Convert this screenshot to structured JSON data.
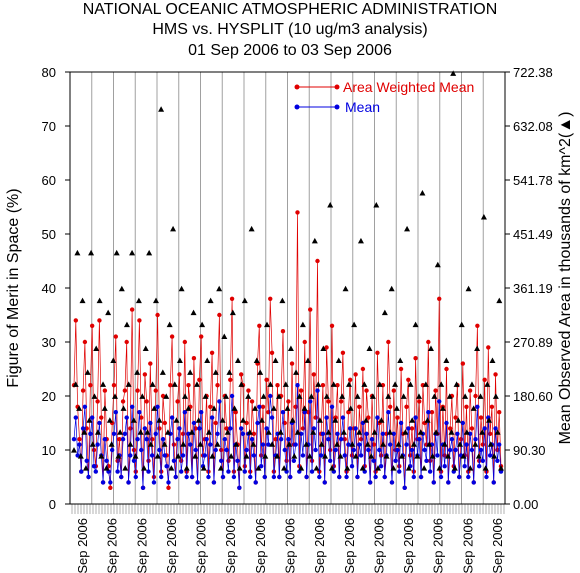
{
  "chart_data": {
    "type": "scatter",
    "title": "NATIONAL OCEANIC ATMOSPHERIC ADMINISTRATION",
    "subtitle": "HMS vs. HYSPLIT (10 ug/m3 analysis)",
    "date_range": "01 Sep 2006 to 03 Sep 2006",
    "ylabel_left": "Figure of Merit in Space (%)",
    "ylabel_right": "Mean Observed Area in thousands of km^2",
    "ylabel_right_marker": "(▲)",
    "ylim_left": [
      0,
      80
    ],
    "yticks_left": [
      "0",
      "10",
      "20",
      "30",
      "40",
      "50",
      "60",
      "70",
      "80"
    ],
    "ylim_right": [
      0,
      722.38
    ],
    "yticks_right": [
      "0.00",
      "90.30",
      "180.60",
      "270.89",
      "361.19",
      "451.49",
      "541.78",
      "632.08",
      "722.38"
    ],
    "x_tick_label": "Sep 2006",
    "x_tick_count": 15,
    "legend_position": "top-right",
    "series": [
      {
        "name": "Area Weighted Mean",
        "color": "#e00000",
        "values": [
          22,
          34,
          18,
          12,
          6,
          21,
          30,
          14,
          5,
          22,
          33,
          10,
          7,
          19,
          34,
          16,
          4,
          21,
          12,
          7,
          3,
          15,
          22,
          31,
          8,
          12,
          5,
          19,
          21,
          30,
          4,
          14,
          36,
          10,
          6,
          21,
          34,
          16,
          3,
          24,
          19,
          8,
          26,
          12,
          5,
          21,
          35,
          14,
          6,
          20,
          15,
          9,
          3,
          22,
          31,
          11,
          5,
          19,
          24,
          8,
          13,
          30,
          6,
          22,
          18,
          5,
          27,
          14,
          4,
          23,
          31,
          9,
          12,
          20,
          6,
          18,
          28,
          4,
          15,
          22,
          35,
          10,
          5,
          20,
          14,
          8,
          23,
          38,
          6,
          17,
          11,
          3,
          24,
          22,
          7,
          15,
          21,
          6,
          19,
          13,
          4,
          26,
          33,
          9,
          18,
          5,
          23,
          17,
          38,
          28,
          6,
          12,
          22,
          5,
          20,
          32,
          15,
          8,
          19,
          5,
          26,
          11,
          18,
          54,
          7,
          21,
          14,
          30,
          5,
          17,
          36,
          8,
          24,
          16,
          45,
          6,
          13,
          22,
          4,
          29,
          19,
          10,
          33,
          7,
          16,
          22,
          5,
          19,
          28,
          12,
          6,
          17,
          23,
          9,
          14,
          24,
          5,
          18,
          12,
          25,
          7,
          21,
          16,
          4,
          20,
          11,
          6,
          28,
          15,
          9,
          22,
          5,
          13,
          30,
          18,
          4,
          21,
          10,
          16,
          7,
          25,
          13,
          3,
          18,
          23,
          9,
          14,
          6,
          27,
          12,
          19,
          5,
          22,
          15,
          11,
          30,
          8,
          17,
          4,
          21,
          13,
          38,
          6,
          18,
          9,
          25,
          4,
          14,
          20,
          7,
          16,
          22,
          5,
          12,
          26,
          9,
          18,
          6,
          21,
          14,
          4,
          20,
          33,
          8,
          16,
          11,
          23,
          6,
          29,
          13,
          18,
          4,
          24,
          10,
          17,
          7
        ]
      },
      {
        "name": "Mean",
        "color": "#0000e0",
        "values": [
          12,
          16,
          9,
          11,
          6,
          14,
          18,
          8,
          5,
          13,
          16,
          7,
          6,
          11,
          15,
          9,
          4,
          12,
          8,
          6,
          4,
          10,
          13,
          17,
          6,
          9,
          5,
          12,
          13,
          16,
          4,
          9,
          18,
          8,
          5,
          12,
          17,
          10,
          3,
          14,
          12,
          6,
          15,
          9,
          4,
          13,
          18,
          10,
          5,
          12,
          9,
          7,
          4,
          13,
          16,
          8,
          5,
          12,
          14,
          6,
          9,
          17,
          5,
          13,
          11,
          5,
          15,
          10,
          4,
          14,
          17,
          7,
          9,
          12,
          5,
          11,
          16,
          4,
          10,
          13,
          19,
          8,
          5,
          12,
          10,
          6,
          14,
          20,
          5,
          11,
          8,
          3,
          14,
          13,
          6,
          10,
          13,
          5,
          12,
          9,
          4,
          15,
          18,
          7,
          11,
          5,
          14,
          11,
          20,
          16,
          5,
          9,
          13,
          5,
          12,
          17,
          10,
          6,
          12,
          5,
          15,
          8,
          11,
          22,
          6,
          13,
          9,
          17,
          5,
          11,
          19,
          6,
          14,
          10,
          21,
          5,
          9,
          13,
          4,
          16,
          12,
          8,
          18,
          6,
          10,
          13,
          5,
          12,
          16,
          9,
          5,
          11,
          14,
          7,
          10,
          14,
          5,
          11,
          9,
          15,
          6,
          13,
          10,
          4,
          12,
          8,
          5,
          16,
          10,
          7,
          13,
          5,
          9,
          17,
          11,
          4,
          13,
          8,
          10,
          6,
          15,
          9,
          3,
          11,
          14,
          7,
          10,
          5,
          16,
          9,
          12,
          5,
          13,
          10,
          8,
          17,
          6,
          11,
          4,
          13,
          9,
          19,
          5,
          11,
          7,
          15,
          4,
          10,
          12,
          6,
          10,
          13,
          5,
          9,
          15,
          7,
          11,
          5,
          13,
          10,
          4,
          12,
          18,
          7,
          10,
          8,
          14,
          5,
          16,
          9,
          11,
          4,
          14,
          8,
          11,
          6
        ]
      },
      {
        "name": "Mean Observed Area",
        "color": "#000000",
        "values": [
          90,
          200,
          420,
          160,
          80,
          340,
          120,
          60,
          220,
          140,
          420,
          100,
          180,
          260,
          120,
          340,
          80,
          200,
          160,
          60,
          320,
          140,
          100,
          240,
          180,
          420,
          80,
          120,
          360,
          160,
          60,
          300,
          200,
          100,
          420,
          140,
          80,
          220,
          340,
          120,
          180,
          60,
          260,
          120,
          420,
          100,
          200,
          160,
          340,
          80,
          140,
          660,
          220,
          100,
          180,
          120,
          300,
          60,
          460,
          200,
          140,
          80,
          240,
          360,
          100,
          180,
          60,
          160,
          220,
          120,
          320,
          80,
          200,
          140,
          100,
          300,
          60,
          180,
          240,
          120,
          340,
          80,
          160,
          220,
          100,
          360,
          60,
          140,
          280,
          180,
          120,
          220,
          80,
          320,
          160,
          100,
          240,
          60,
          200,
          140,
          340,
          80,
          180,
          120,
          460,
          100,
          160,
          240,
          60,
          220,
          140,
          180,
          80,
          300,
          120,
          200,
          100,
          160,
          240,
          80,
          180,
          120,
          340,
          60,
          200,
          160,
          100,
          260,
          140,
          80,
          220,
          120,
          180,
          60,
          300,
          160,
          100,
          240,
          80,
          180,
          120,
          440,
          60,
          200,
          140,
          100,
          260,
          80,
          180,
          120,
          500,
          60,
          200,
          140,
          100,
          240,
          80,
          180,
          120,
          360,
          60,
          200,
          160,
          100,
          300,
          80,
          180,
          120,
          440,
          60,
          200,
          140,
          100,
          260,
          80,
          180,
          120,
          500,
          60,
          200,
          140,
          100,
          320,
          80,
          180,
          120,
          360,
          60,
          200,
          160,
          100,
          240,
          80,
          180,
          120,
          460,
          60,
          200,
          140,
          100,
          300,
          80,
          180,
          120,
          520,
          60,
          200,
          140,
          100,
          260,
          80,
          180,
          120,
          400,
          60,
          200,
          160,
          100,
          240,
          80,
          180,
          120,
          720,
          60,
          200,
          140,
          100,
          300,
          80,
          180,
          120,
          360,
          60,
          200,
          160,
          100,
          260,
          80,
          180,
          120,
          480,
          60,
          200,
          140,
          100,
          240,
          80,
          180,
          120,
          340,
          60
        ]
      }
    ]
  },
  "legend": {
    "items": [
      {
        "label": "Area Weighted Mean",
        "color": "#e00000"
      },
      {
        "label": "Mean",
        "color": "#0000e0"
      }
    ]
  }
}
